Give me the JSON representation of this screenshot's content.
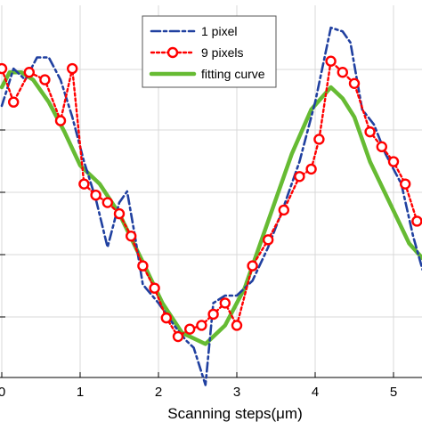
{
  "chart_data": {
    "type": "line",
    "title": "",
    "xlabel": "Scanning steps(μm)",
    "ylabel": "",
    "xlim": [
      0.0,
      5.37
    ],
    "ylim": [
      0.0,
      1.0
    ],
    "xticks": [
      0,
      1,
      2,
      3,
      4,
      5
    ],
    "yticks_shown": false,
    "grid": true,
    "legend_position": "top-right",
    "series": [
      {
        "name": "1 pixel",
        "color": "#2040a0",
        "style": "dash-dot",
        "marker": "none",
        "x": [
          0.0,
          0.15,
          0.3,
          0.45,
          0.6,
          0.75,
          0.9,
          1.05,
          1.2,
          1.35,
          1.5,
          1.6,
          1.7,
          1.8,
          2.0,
          2.2,
          2.35,
          2.45,
          2.6,
          2.7,
          2.85,
          3.0,
          3.2,
          3.4,
          3.6,
          3.8,
          4.0,
          4.2,
          4.35,
          4.45,
          4.6,
          4.75,
          4.9,
          5.1,
          5.25,
          5.37
        ],
        "y": [
          0.73,
          0.83,
          0.8,
          0.86,
          0.86,
          0.8,
          0.7,
          0.58,
          0.48,
          0.35,
          0.47,
          0.5,
          0.38,
          0.25,
          0.2,
          0.14,
          0.1,
          0.08,
          -0.02,
          0.2,
          0.22,
          0.22,
          0.26,
          0.35,
          0.46,
          0.58,
          0.74,
          0.94,
          0.93,
          0.9,
          0.72,
          0.68,
          0.6,
          0.52,
          0.38,
          0.29
        ]
      },
      {
        "name": "9 pixels",
        "color": "#ff0000",
        "style": "dotted",
        "marker": "circle",
        "x": [
          0.0,
          0.15,
          0.35,
          0.55,
          0.75,
          0.9,
          1.05,
          1.2,
          1.35,
          1.5,
          1.65,
          1.8,
          1.95,
          2.1,
          2.25,
          2.4,
          2.55,
          2.7,
          2.85,
          3.0,
          3.2,
          3.4,
          3.6,
          3.8,
          3.95,
          4.05,
          4.2,
          4.35,
          4.5,
          4.7,
          4.85,
          5.0,
          5.15,
          5.3
        ],
        "y": [
          0.83,
          0.74,
          0.82,
          0.8,
          0.69,
          0.83,
          0.52,
          0.49,
          0.47,
          0.44,
          0.38,
          0.3,
          0.24,
          0.16,
          0.11,
          0.13,
          0.14,
          0.17,
          0.2,
          0.14,
          0.3,
          0.37,
          0.45,
          0.54,
          0.56,
          0.64,
          0.85,
          0.82,
          0.79,
          0.66,
          0.62,
          0.58,
          0.52,
          0.42
        ]
      },
      {
        "name": "fitting curve",
        "color": "#66bb33",
        "style": "solid",
        "marker": "none",
        "x": [
          0.0,
          0.1,
          0.25,
          0.4,
          0.6,
          0.8,
          1.0,
          1.25,
          1.5,
          1.8,
          2.05,
          2.3,
          2.6,
          2.85,
          3.1,
          3.4,
          3.7,
          3.95,
          4.2,
          4.35,
          4.5,
          4.7,
          4.95,
          5.2,
          5.37
        ],
        "y": [
          0.78,
          0.82,
          0.82,
          0.8,
          0.74,
          0.66,
          0.57,
          0.52,
          0.44,
          0.31,
          0.2,
          0.12,
          0.09,
          0.14,
          0.24,
          0.42,
          0.6,
          0.72,
          0.78,
          0.75,
          0.7,
          0.58,
          0.47,
          0.36,
          0.32
        ]
      }
    ]
  }
}
